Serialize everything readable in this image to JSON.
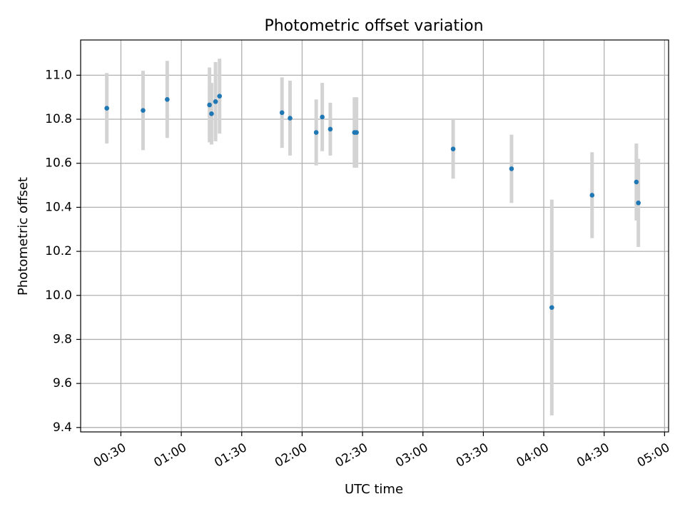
{
  "chart_data": {
    "type": "scatter",
    "title": "Photometric offset variation",
    "xlabel": "UTC time",
    "ylabel": "Photometric offset",
    "xlim": [
      "00:10",
      "05:02"
    ],
    "ylim": [
      9.38,
      11.16
    ],
    "xticks": [
      "00:30",
      "01:00",
      "01:30",
      "02:00",
      "02:30",
      "03:00",
      "03:30",
      "04:00",
      "04:30",
      "05:00"
    ],
    "yticks": [
      9.4,
      9.6,
      9.8,
      10.0,
      10.2,
      10.4,
      10.6,
      10.8,
      11.0
    ],
    "ytick_labels": [
      "9.4",
      "9.6",
      "9.8",
      "10.0",
      "10.2",
      "10.4",
      "10.6",
      "10.8",
      "11.0"
    ],
    "grid": true,
    "colors": {
      "marker": "#1f77b4",
      "errorbar": "#d3d3d3",
      "grid": "#b0b0b0"
    },
    "points": [
      {
        "x": "00:23",
        "y": 10.85,
        "err": 0.16
      },
      {
        "x": "00:41",
        "y": 10.84,
        "err": 0.18
      },
      {
        "x": "00:53",
        "y": 10.89,
        "err": 0.175
      },
      {
        "x": "01:14",
        "y": 10.865,
        "err": 0.17
      },
      {
        "x": "01:15",
        "y": 10.825,
        "err": 0.14
      },
      {
        "x": "01:17",
        "y": 10.88,
        "err": 0.18
      },
      {
        "x": "01:19",
        "y": 10.905,
        "err": 0.17
      },
      {
        "x": "01:50",
        "y": 10.83,
        "err": 0.16
      },
      {
        "x": "01:54",
        "y": 10.805,
        "err": 0.17
      },
      {
        "x": "02:07",
        "y": 10.74,
        "err": 0.15
      },
      {
        "x": "02:10",
        "y": 10.81,
        "err": 0.155
      },
      {
        "x": "02:14",
        "y": 10.755,
        "err": 0.12
      },
      {
        "x": "02:26",
        "y": 10.74,
        "err": 0.16
      },
      {
        "x": "02:27",
        "y": 10.74,
        "err": 0.16
      },
      {
        "x": "03:15",
        "y": 10.665,
        "err": 0.135
      },
      {
        "x": "03:44",
        "y": 10.575,
        "err": 0.155
      },
      {
        "x": "04:04",
        "y": 9.945,
        "err": 0.49
      },
      {
        "x": "04:24",
        "y": 10.455,
        "err": 0.195
      },
      {
        "x": "04:46",
        "y": 10.515,
        "err": 0.175
      },
      {
        "x": "04:47",
        "y": 10.42,
        "err": 0.2
      }
    ]
  }
}
